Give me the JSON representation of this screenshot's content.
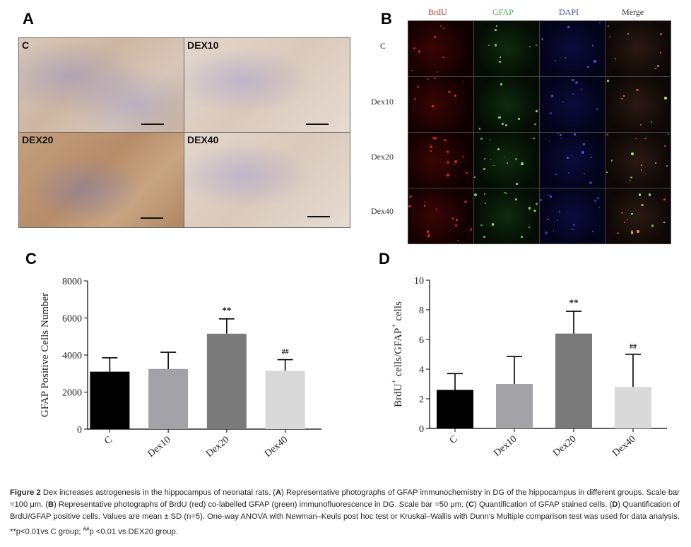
{
  "panels": {
    "a": {
      "label": "A",
      "images": [
        {
          "label": "C"
        },
        {
          "label": "DEX10"
        },
        {
          "label": "DEX20"
        },
        {
          "label": "DEX40"
        }
      ]
    },
    "b": {
      "label": "B",
      "columns": [
        {
          "label": "BrdU",
          "color": "#c0392b"
        },
        {
          "label": "GFAP",
          "color": "#4caf50"
        },
        {
          "label": "DAPI",
          "color": "#3f51b5"
        },
        {
          "label": "Merge",
          "color": "#333333"
        }
      ],
      "rows": [
        "C",
        "Dex10",
        "Dex20",
        "Dex40"
      ]
    },
    "c": {
      "label": "C"
    },
    "d": {
      "label": "D"
    }
  },
  "chart_data": [
    {
      "type": "bar",
      "categories": [
        "C",
        "Dex10",
        "Dex20",
        "Dex40"
      ],
      "values": [
        3100,
        3250,
        5150,
        3150
      ],
      "errors": [
        750,
        900,
        800,
        600
      ],
      "bar_colors": [
        "#000000",
        "#a3a3a7",
        "#7a7a7a",
        "#d9d9d9"
      ],
      "annotations": [
        "",
        "",
        "**",
        "##"
      ],
      "ylabel": "GFAP Positive Cells Number",
      "yticks": [
        "0",
        "2000",
        "4000",
        "6000",
        "8000"
      ],
      "ylim": [
        0,
        8000
      ]
    },
    {
      "type": "bar",
      "categories": [
        "C",
        "Dex10",
        "Dex20",
        "Dex40"
      ],
      "values": [
        2.6,
        3.0,
        6.4,
        2.8
      ],
      "errors": [
        1.1,
        1.85,
        1.5,
        2.2
      ],
      "bar_colors": [
        "#000000",
        "#a3a3a7",
        "#7a7a7a",
        "#d9d9d9"
      ],
      "annotations": [
        "",
        "",
        "**",
        "##"
      ],
      "ylabel_main": "BrdU",
      "ylabel_sup1": "+",
      "ylabel_mid": " cells/GFAP",
      "ylabel_sup2": "+",
      "ylabel_end": " cells",
      "yticks": [
        "0",
        "2",
        "4",
        "6",
        "8",
        "10"
      ],
      "ylim": [
        0,
        10
      ]
    }
  ],
  "caption": {
    "figure_label": "Figure 2",
    "text_1": " Dex increases astrogenesis in the hippocampus of neonatal rats. (",
    "a": "A",
    "text_2": ") Representative photographs of GFAP immunochemistry in DG of the hippocampus in different groups. Scale bar =100 μm. (",
    "b": "B",
    "text_3": ") Representative photographs of BrdU (red) co-labelled GFAP (green) immunofluorescence in DG. Scale bar =50 μm. (",
    "c": "C",
    "text_4": ") Quantification of GFAP stained cells. (",
    "d": "D",
    "text_5": ") Quantification of BrdU/GFAP positive cells. Values are mean ± SD (n=5). One-way ANOVA with Newman–Keuls post hoc test or Kruskal–Wallis with Dunn's Multiple comparison test was used for data analysis. **p<0.01vs C group; ",
    "hash": "##",
    "text_6": "p <0.01 vs DEX20 group."
  }
}
